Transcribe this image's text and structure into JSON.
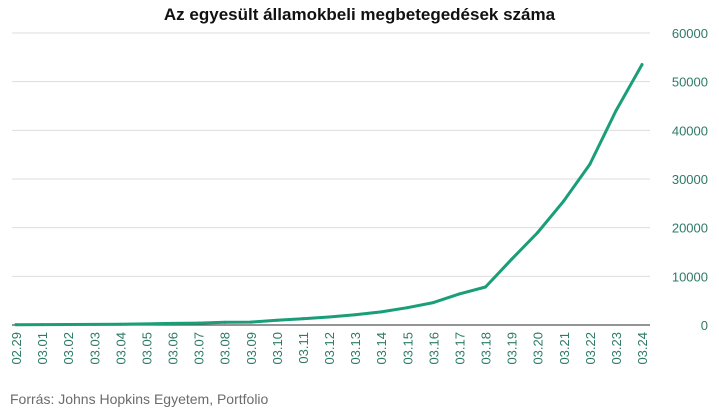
{
  "chart_data": {
    "type": "line",
    "title": "Az egyesült államokbeli megbetegedések száma",
    "source": "Forrás: Johns Hopkins Egyetem, Portfolio",
    "xlabel": "",
    "ylabel": "",
    "categories": [
      "02.29",
      "03.01",
      "03.02",
      "03.03",
      "03.04",
      "03.05",
      "03.06",
      "03.07",
      "03.08",
      "03.09",
      "03.10",
      "03.11",
      "03.12",
      "03.13",
      "03.14",
      "03.15",
      "03.16",
      "03.17",
      "03.18",
      "03.19",
      "03.20",
      "03.21",
      "03.22",
      "03.23",
      "03.24"
    ],
    "values": [
      70,
      75,
      100,
      120,
      160,
      230,
      330,
      400,
      550,
      600,
      960,
      1300,
      1650,
      2100,
      2700,
      3550,
      4600,
      6400,
      7800,
      13500,
      19000,
      25500,
      33000,
      44000,
      53500
    ],
    "ylim": [
      0,
      60000
    ],
    "yticks": [
      0,
      10000,
      20000,
      30000,
      40000,
      50000,
      60000
    ],
    "y_axis_side": "right",
    "grid": true,
    "legend": "none",
    "colors": {
      "line": "#1a9e78",
      "tick_text": "#2d7a66",
      "grid": "#dddddd",
      "baseline": "#555555"
    }
  }
}
